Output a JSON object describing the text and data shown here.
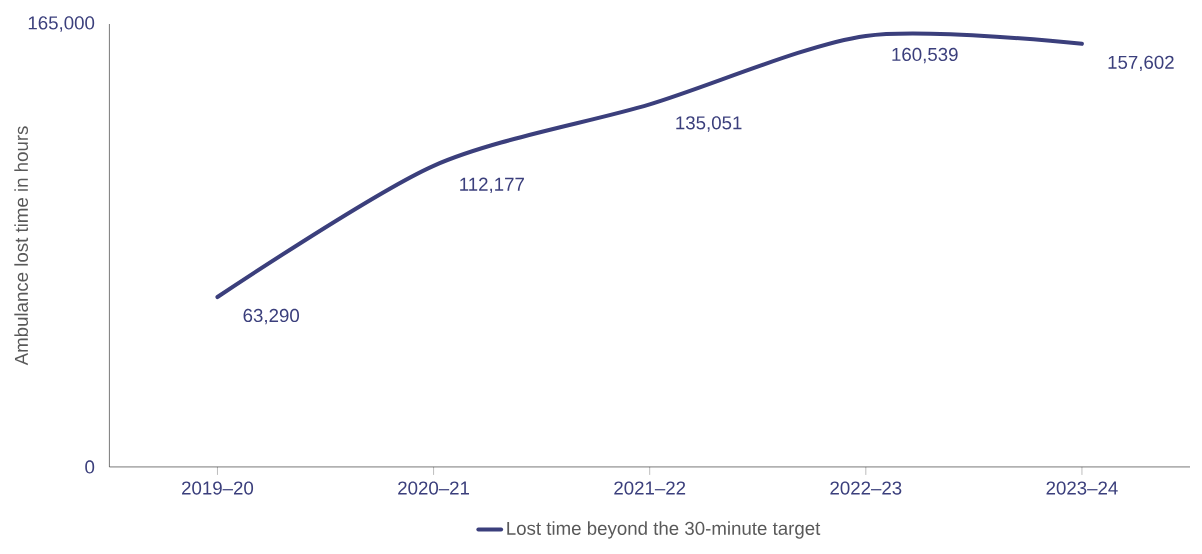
{
  "chart_data": {
    "type": "line",
    "ylabel": "Ambulance lost time in hours",
    "categories": [
      "2019–20",
      "2020–21",
      "2021–22",
      "2022–23",
      "2023–24"
    ],
    "series": [
      {
        "name": "Lost time beyond the 30-minute target",
        "color": "#3b3f7c",
        "values": [
          63290,
          112177,
          135051,
          160539,
          157602
        ],
        "value_labels": [
          "63,290",
          "112,177",
          "135,051",
          "160,539",
          "157,602"
        ]
      }
    ],
    "ylim": [
      0,
      165000
    ],
    "yticks": [
      0,
      {
        "value": 165000,
        "label": "165,000"
      }
    ],
    "grid": false,
    "legend": "bottom",
    "marker": "none",
    "line_style": "solid"
  }
}
